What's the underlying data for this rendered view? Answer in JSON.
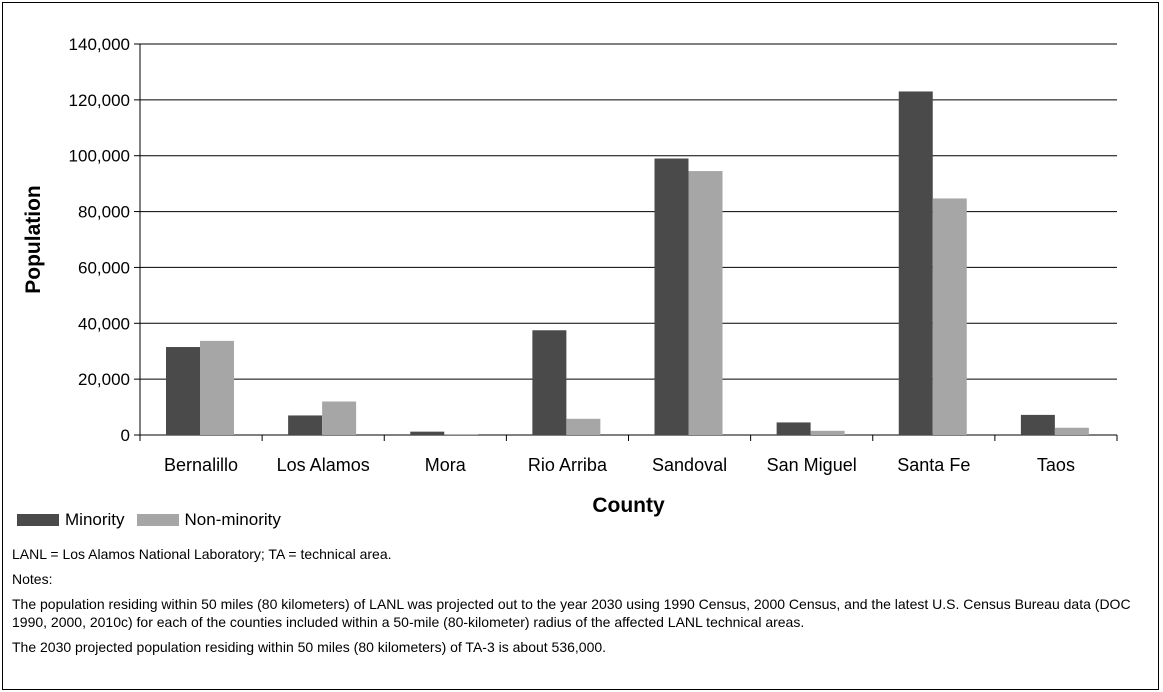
{
  "chart_data": {
    "type": "bar",
    "xlabel": "County",
    "ylabel": "Population",
    "ylim": [
      0,
      140000
    ],
    "yticks": [
      "0",
      "20,000",
      "40,000",
      "60,000",
      "80,000",
      "100,000",
      "120,000",
      "140,000"
    ],
    "grid": true,
    "categories": [
      "Bernalillo",
      "Los Alamos",
      "Mora",
      "Rio Arriba",
      "Sandoval",
      "San Miguel",
      "Santa Fe",
      "Taos"
    ],
    "series": [
      {
        "name": "Minority",
        "color": "#4a4a4a",
        "values": [
          31500,
          7000,
          1200,
          37500,
          99000,
          4500,
          123000,
          7200
        ]
      },
      {
        "name": "Non-minority",
        "color": "#a6a6a6",
        "values": [
          33700,
          12000,
          300,
          5800,
          94500,
          1500,
          84700,
          2600
        ]
      }
    ]
  },
  "notes": {
    "abbrev": "LANL = Los Alamos National Laboratory; TA = technical area.",
    "heading": "Notes:",
    "note1": "The population residing within 50 miles (80 kilometers) of LANL was projected out to the year 2030 using 1990 Census, 2000 Census, and the latest U.S. Census Bureau data (DOC 1990, 2000, 2010c) for each of the counties included within a 50-mile (80-kilometer) radius of the affected LANL technical areas.",
    "note2": "The 2030 projected population residing within 50 miles (80 kilometers) of TA-3 is about 536,000."
  }
}
